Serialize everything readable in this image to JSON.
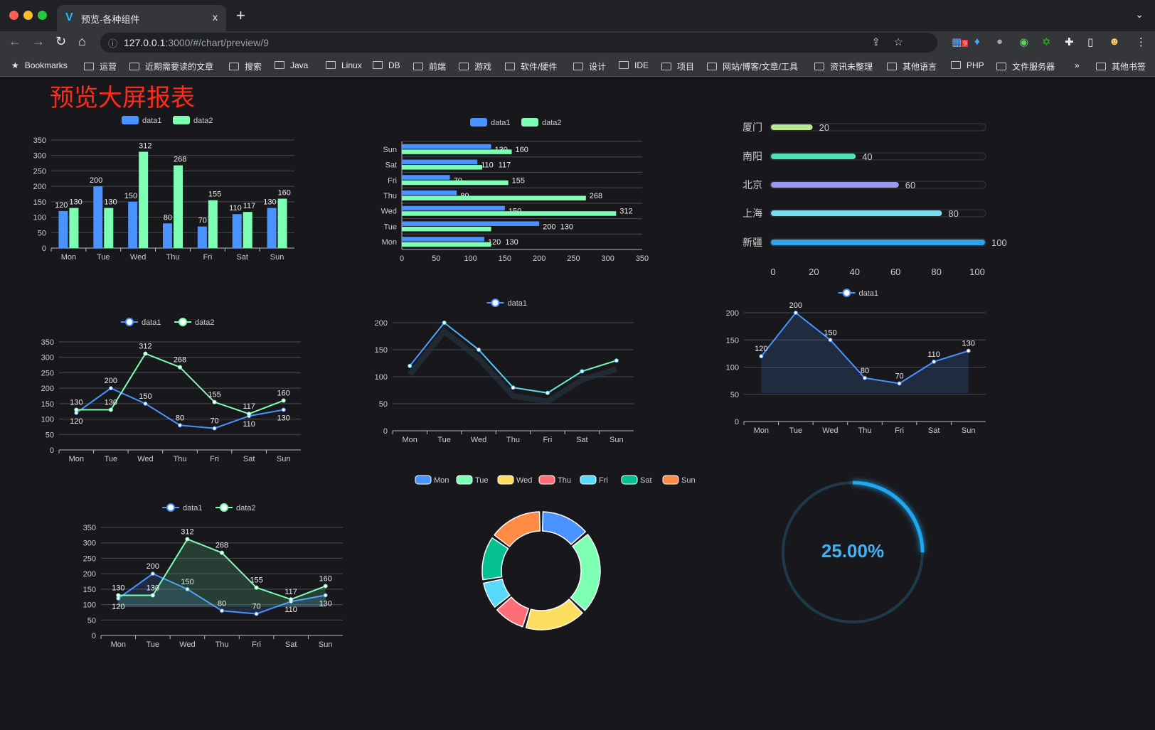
{
  "browser": {
    "tab_title": "预览-各种组件",
    "tab_close": "x",
    "new_tab": "+",
    "url_host": "127.0.0.1",
    "url_rest": ":3000/#/chart/preview/9",
    "extension_badge": "9",
    "bookmarks": [
      "Bookmarks",
      "运营",
      "近期需要读的文章",
      "搜索",
      "Java",
      "Linux",
      "DB",
      "前端",
      "游戏",
      "软件/硬件",
      "设计",
      "IDE",
      "项目",
      "网站/博客/文章/工具",
      "资讯未整理",
      "其他语言",
      "PHP",
      "文件服务器"
    ],
    "bookmarks_more": "»",
    "other_bookmarks": "其他书签"
  },
  "page": {
    "title": "预览大屏报表"
  },
  "colors": {
    "data1": "#4992ff",
    "data2": "#7cffb2",
    "bg": "#18181c",
    "red_title": "#ff2a1a"
  },
  "chart_data": [
    {
      "type": "bar",
      "categories": [
        "Mon",
        "Tue",
        "Wed",
        "Thu",
        "Fri",
        "Sat",
        "Sun"
      ],
      "series": [
        {
          "name": "data1",
          "values": [
            120,
            200,
            150,
            80,
            70,
            110,
            130
          ]
        },
        {
          "name": "data2",
          "values": [
            130,
            130,
            312,
            268,
            155,
            117,
            160
          ]
        }
      ],
      "ylim": [
        0,
        350
      ],
      "legend": "top-center",
      "grid": true
    },
    {
      "type": "bar",
      "orientation": "horizontal",
      "categories": [
        "Mon",
        "Tue",
        "Wed",
        "Thu",
        "Fri",
        "Sat",
        "Sun"
      ],
      "series": [
        {
          "name": "data1",
          "values": [
            120,
            200,
            150,
            80,
            70,
            110,
            130
          ]
        },
        {
          "name": "data2",
          "values": [
            130,
            130,
            312,
            268,
            155,
            117,
            160
          ]
        }
      ],
      "xlim": [
        0,
        350
      ],
      "legend": "top-center",
      "grid": true
    },
    {
      "type": "bar",
      "orientation": "horizontal",
      "style": "progress",
      "categories": [
        "厦门",
        "南阳",
        "北京",
        "上海",
        "新疆"
      ],
      "values": [
        20,
        40,
        60,
        80,
        100
      ],
      "colors": [
        "#b8e994",
        "#4ee0b0",
        "#9a9af0",
        "#7adcf0",
        "#2da5e8"
      ],
      "xlim": [
        0,
        100
      ],
      "xticks": [
        0,
        20,
        40,
        60,
        80,
        100
      ]
    },
    {
      "type": "line",
      "categories": [
        "Mon",
        "Tue",
        "Wed",
        "Thu",
        "Fri",
        "Sat",
        "Sun"
      ],
      "series": [
        {
          "name": "data1",
          "values": [
            120,
            200,
            150,
            80,
            70,
            110,
            130
          ]
        },
        {
          "name": "data2",
          "values": [
            130,
            130,
            312,
            268,
            155,
            117,
            160
          ]
        }
      ],
      "ylim": [
        0,
        350
      ],
      "legend": "top-center",
      "grid": true
    },
    {
      "type": "line",
      "categories": [
        "Mon",
        "Tue",
        "Wed",
        "Thu",
        "Fri",
        "Sat",
        "Sun"
      ],
      "series": [
        {
          "name": "data1",
          "values": [
            120,
            200,
            150,
            80,
            70,
            110,
            130
          ]
        }
      ],
      "ylim": [
        0,
        200
      ],
      "legend": "top-center",
      "grid": true
    },
    {
      "type": "area",
      "categories": [
        "Mon",
        "Tue",
        "Wed",
        "Thu",
        "Fri",
        "Sat",
        "Sun"
      ],
      "series": [
        {
          "name": "data1",
          "values": [
            120,
            200,
            150,
            80,
            70,
            110,
            130
          ]
        }
      ],
      "ylim": [
        0,
        200
      ],
      "legend": "top-center",
      "grid": true
    },
    {
      "type": "area",
      "categories": [
        "Mon",
        "Tue",
        "Wed",
        "Thu",
        "Fri",
        "Sat",
        "Sun"
      ],
      "series": [
        {
          "name": "data1",
          "values": [
            120,
            200,
            150,
            80,
            70,
            110,
            130
          ]
        },
        {
          "name": "data2",
          "values": [
            130,
            130,
            312,
            268,
            155,
            117,
            160
          ]
        }
      ],
      "ylim": [
        0,
        350
      ],
      "legend": "top-center",
      "grid": true
    },
    {
      "type": "pie",
      "style": "donut",
      "categories": [
        "Mon",
        "Tue",
        "Wed",
        "Thu",
        "Fri",
        "Sat",
        "Sun"
      ],
      "values": [
        120,
        200,
        150,
        80,
        70,
        110,
        130
      ],
      "colors": [
        "#4992ff",
        "#7cffb2",
        "#fddd60",
        "#ff6e76",
        "#58d9f9",
        "#05c091",
        "#ff8a45"
      ],
      "legend": "top-center"
    },
    {
      "type": "gauge",
      "value": 0.25,
      "label": "25.00%",
      "color": "#1fa8f0"
    }
  ]
}
